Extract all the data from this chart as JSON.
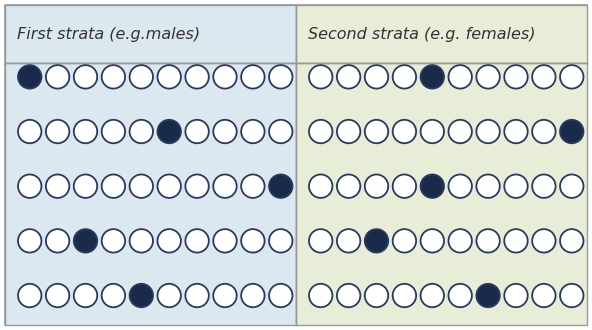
{
  "left_title": "First strata (e.g.males)",
  "right_title": "Second strata (e.g. females)",
  "left_bg": "#dce8f0",
  "right_bg": "#e8edd8",
  "border_color": "#999999",
  "circle_edge_color": "#2a3a5e",
  "filled_color": "#1a2a4a",
  "open_face_color": "#ffffff",
  "n_rows": 5,
  "n_cols": 10,
  "left_filled_positions": [
    0,
    5,
    9,
    2,
    4
  ],
  "right_filled_positions": [
    4,
    9,
    4,
    2,
    6
  ],
  "title_fontsize": 11.5,
  "title_style": "italic",
  "title_weight": "normal"
}
